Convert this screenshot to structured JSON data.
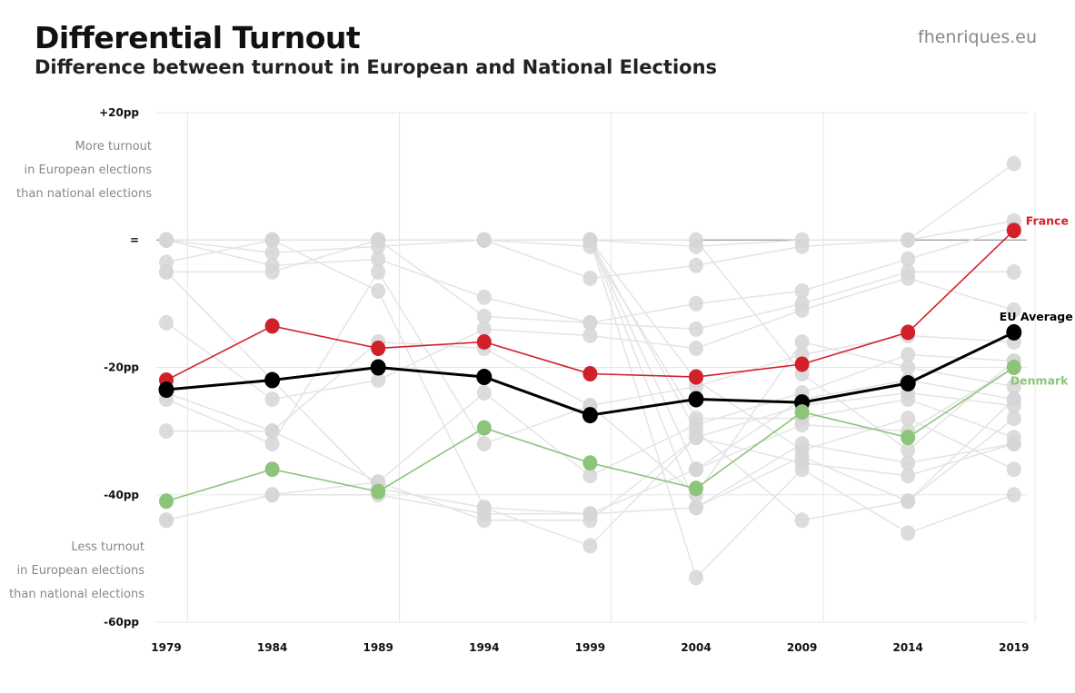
{
  "header": {
    "title": "Differential Turnout",
    "subtitle": "Difference between turnout in European and National Elections",
    "brand": "fhenriques.eu"
  },
  "annotations": {
    "upper": [
      "More turnout",
      "in European elections",
      "than national elections"
    ],
    "lower": [
      "Less turnout",
      "in European elections",
      "than national elections"
    ]
  },
  "colors": {
    "france": "#d1202a",
    "denmark": "#8cc57a",
    "eu_average": "#000000",
    "others": "#d6d6d6",
    "others_line": "#e4e4e4",
    "grid": "#e6e6e6",
    "zero_line": "#999999"
  },
  "chart_data": {
    "type": "line",
    "x": [
      "1979",
      "1984",
      "1989",
      "1994",
      "1999",
      "2004",
      "2009",
      "2014",
      "2019"
    ],
    "ylim": [
      -60,
      20
    ],
    "yticks": [
      {
        "value": 20,
        "label": "+20pp"
      },
      {
        "value": 0,
        "label": "="
      },
      {
        "value": -20,
        "label": "-20pp"
      },
      {
        "value": -40,
        "label": "-40pp"
      },
      {
        "value": -60,
        "label": "-60pp"
      }
    ],
    "grid": true,
    "series": [
      {
        "name": "France",
        "key": "france",
        "values": [
          -22,
          -13.5,
          -17,
          -16,
          -21,
          -21.5,
          -19.5,
          -14.5,
          1.5
        ]
      },
      {
        "name": "EU Average",
        "key": "eu_average",
        "values": [
          -23.5,
          -22,
          -20,
          -21.5,
          -27.5,
          -25,
          -25.5,
          -22.5,
          -14.5
        ]
      },
      {
        "name": "Denmark",
        "key": "denmark",
        "values": [
          -41,
          -36,
          -39.5,
          -29.5,
          -35,
          -39,
          -27,
          -31,
          -20
        ]
      }
    ],
    "other_countries": [
      [
        0,
        -4,
        -3,
        -9,
        -13,
        -10,
        -8,
        -3,
        2
      ],
      [
        -5,
        -5,
        0,
        -12,
        -13,
        -14,
        -10,
        -5,
        -5
      ],
      [
        -13,
        -25,
        -22,
        -14,
        -15,
        -17,
        -11,
        -6,
        -11
      ],
      [
        -24,
        -30,
        -16,
        -17,
        -26,
        -23,
        -18,
        -15,
        -16
      ],
      [
        -30,
        -30,
        -38,
        -24,
        -37,
        -29,
        -24,
        -18,
        -19
      ],
      [
        -44,
        -40,
        -40,
        -43,
        -43,
        -36,
        -25,
        -22,
        -25
      ],
      [
        -3.5,
        0,
        -8,
        -42,
        -48,
        -31,
        -26,
        -24,
        -26
      ],
      [
        0,
        -2,
        -1,
        0,
        -6,
        -4,
        -1,
        0,
        12
      ],
      [
        -25,
        -32,
        -5,
        -32,
        -26,
        -40,
        -16,
        -20,
        -23
      ],
      [
        0,
        0,
        0,
        0,
        0,
        -1,
        0,
        0,
        3
      ],
      [
        -5,
        -22,
        -39,
        -42,
        -43,
        -42,
        -34,
        -41,
        -28
      ],
      [
        -44,
        -40,
        -38,
        -44,
        -44,
        -31,
        -35,
        -37,
        -32
      ],
      [
        0,
        0,
        0,
        0,
        -1,
        -28,
        -28,
        -25,
        -31
      ],
      [
        0,
        0,
        0,
        0,
        0,
        -22,
        -33,
        -28,
        -36
      ],
      [
        0,
        0,
        0,
        0,
        0,
        -53,
        -36,
        -46,
        -40
      ],
      [
        0,
        0,
        0,
        0,
        0,
        -30,
        -44,
        -41,
        -25
      ],
      [
        0,
        0,
        0,
        0,
        0,
        -36,
        -29,
        -30,
        -20
      ],
      [
        0,
        0,
        0,
        0,
        0,
        -42,
        -32,
        -35,
        -32
      ],
      [
        0,
        0,
        0,
        0,
        0,
        0,
        -21,
        -33,
        -19
      ]
    ]
  }
}
